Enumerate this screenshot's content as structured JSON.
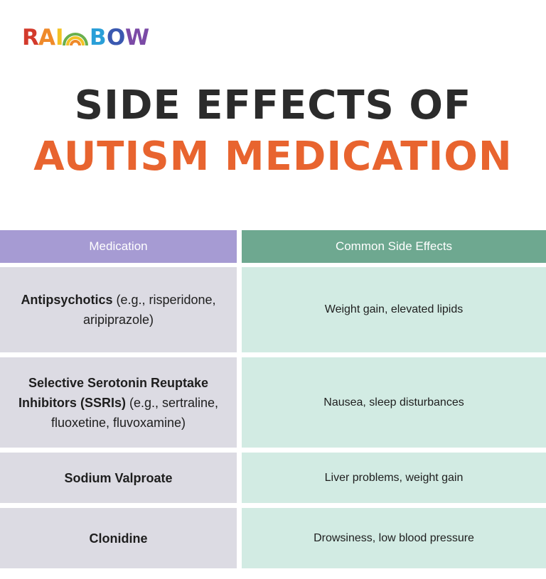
{
  "brand": {
    "logo_text": "RAINBOW",
    "colors": [
      "#d33a2c",
      "#ef8a2a",
      "#f3c225",
      "#6ab04c",
      "#2a9fd8",
      "#3a58b0",
      "#7b4aa6"
    ]
  },
  "title": {
    "line1": "SIDE EFFECTS OF",
    "line2": "AUTISM MEDICATION"
  },
  "table": {
    "headers": [
      "Medication",
      "Common Side Effects"
    ],
    "rows": [
      {
        "name_bold": "Antipsychotics",
        "name_rest": " (e.g., risperidone, aripiprazole)",
        "effects": "Weight gain, elevated lipids"
      },
      {
        "name_bold": "Selective Serotonin Reuptake Inhibitors (SSRIs)",
        "name_rest": " (e.g., sertraline, fluoxetine, fluvoxamine)",
        "effects": "Nausea, sleep disturbances"
      },
      {
        "name_bold": "Sodium Valproate",
        "name_rest": "",
        "effects": "Liver problems, weight gain"
      },
      {
        "name_bold": "Clonidine",
        "name_rest": "",
        "effects": "Drowsiness, low blood pressure"
      }
    ]
  },
  "colors": {
    "title_dark": "#2b2b2b",
    "title_accent": "#e8642f",
    "header_medication": "#a69bd3",
    "header_effects": "#6ea890",
    "cell_medication": "#dcdbe3",
    "cell_effects": "#d2ebe3"
  }
}
